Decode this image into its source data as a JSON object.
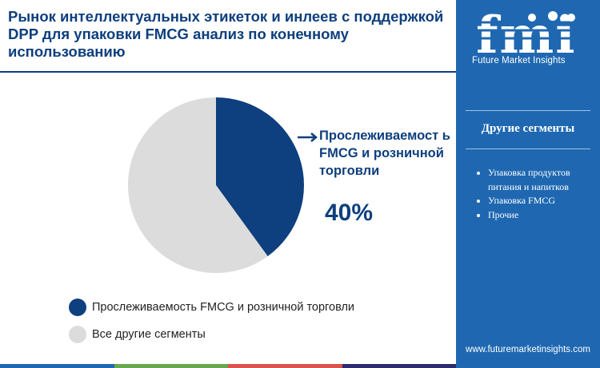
{
  "title": "Рынок интеллектуальных этикеток и инлеев с поддержкой DPP для упаковки FMCG анализ по конечному использованию",
  "colors": {
    "primary": "#0e3f7e",
    "other": "#dcdcdc",
    "sidebar": "#1f68b1"
  },
  "chart_data": {
    "type": "pie",
    "slices": [
      {
        "label": "Прослеживаемость FMCG и розничной торговли",
        "value": 40,
        "color": "#0e3f7e"
      },
      {
        "label": "Все другие сегменты",
        "value": 60,
        "color": "#dcdcdc"
      }
    ],
    "legend_position": "bottom"
  },
  "callout": {
    "label": "Прослеживаемост ь FMCG и розничной торговли",
    "value": "40%"
  },
  "legend": [
    {
      "label": "Прослеживаемость FMCG и розничной торговли"
    },
    {
      "label": "Все другие сегменты"
    }
  ],
  "sidebar": {
    "logo_text": "fmi",
    "brand": "Future Market Insights",
    "heading": "Другие сегменты",
    "items": [
      "Упаковка продуктов питания и напитков",
      "Упаковка FMCG",
      "Прочие"
    ],
    "url": "www.futuremarketinsights.com"
  },
  "bottom_bar_colors": [
    "#1f68b1",
    "#6aa84f",
    "#d9534f",
    "#2b2b6e"
  ]
}
